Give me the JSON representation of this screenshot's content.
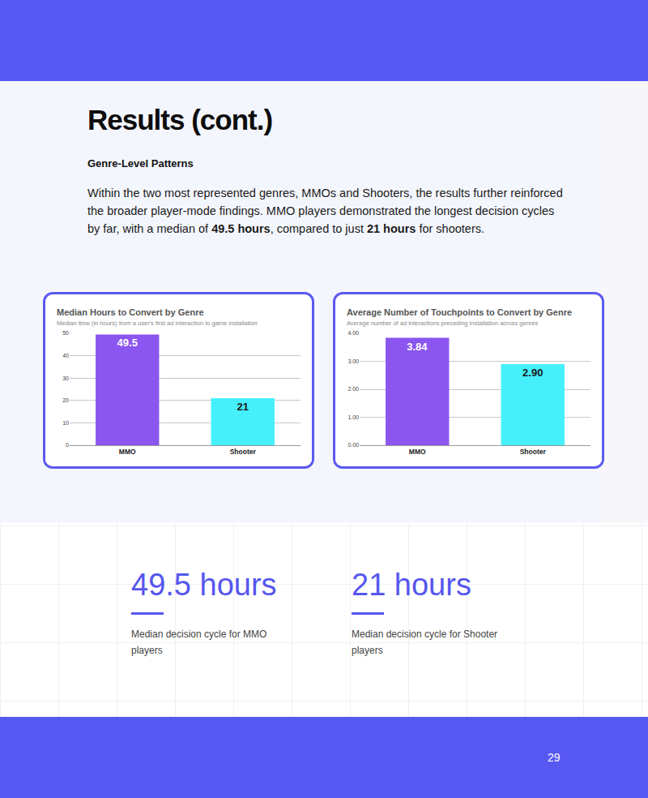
{
  "title": "Results (cont.)",
  "section": "Genre-Level Patterns",
  "paragraph": [
    {
      "text": "Within the two most represented genres, MMOs and Shooters, the results further reinforced the broader player-mode findings. MMO players demonstrated the longest decision cycles by far, with a median of ",
      "bold": false
    },
    {
      "text": "49.5 hours",
      "bold": true
    },
    {
      "text": ", compared to just ",
      "bold": false
    },
    {
      "text": "21 hours",
      "bold": true
    },
    {
      "text": " for shooters.",
      "bold": false
    }
  ],
  "chart_data": [
    {
      "type": "bar",
      "title": "Median Hours to Convert by Genre",
      "subtitle": "Median time (in hours) from a user's first ad interaction to game installation",
      "categories": [
        "MMO",
        "Shooter"
      ],
      "values": [
        49.5,
        21
      ],
      "colors": [
        "#8b55f0",
        "#45f0fb"
      ],
      "ylim": [
        0,
        50
      ],
      "yticks": [
        0,
        10,
        20,
        30,
        40,
        50
      ],
      "grid": true,
      "data_labels": true
    },
    {
      "type": "bar",
      "title": "Average Number of Touchpoints to Convert by Genre",
      "subtitle": "Average number of ad interactions preceding installation across genres",
      "categories": [
        "MMO",
        "Shooter"
      ],
      "values": [
        3.84,
        2.9
      ],
      "value_labels": [
        "3.84",
        "2.90"
      ],
      "colors": [
        "#8b55f0",
        "#45f0fb"
      ],
      "ylim": [
        0,
        4
      ],
      "yticks": [
        {
          "value": 0,
          "label": "0.00"
        },
        {
          "value": 1,
          "label": "1.00"
        },
        {
          "value": 2,
          "label": "2.00"
        },
        {
          "value": 3,
          "label": "3.00"
        },
        {
          "value": 4,
          "label": "4.00"
        }
      ],
      "grid": true,
      "data_labels": true
    }
  ],
  "stats": [
    {
      "value": "49.5 hours",
      "caption": "Median decision cycle for MMO players"
    },
    {
      "value": "21 hours",
      "caption": "Median decision cycle for Shooter players"
    }
  ],
  "page_number": 29
}
